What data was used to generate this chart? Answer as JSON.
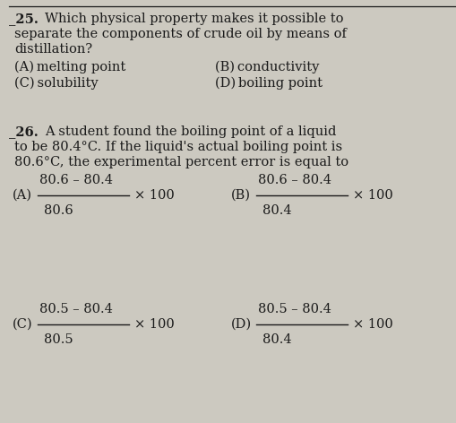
{
  "bg_color": "#ccc9c0",
  "text_color": "#1a1a1a",
  "fig_width": 5.09,
  "fig_height": 4.72,
  "dpi": 100,
  "q25_number": "_25.",
  "q25_line1": "Which physical property makes it possible to",
  "q25_line2": "separate the components of crude oil by means of",
  "q25_line3": "distillation?",
  "q25_A": "(A) melting point",
  "q25_B": "(B) conductivity",
  "q25_C": "(C) solubility",
  "q25_D": "(D) boiling point",
  "q26_number": "_26.",
  "q26_line1": "A student found the boiling point of a liquid",
  "q26_line2": "to be 80.4°C. If the liquid's actual boiling point is",
  "q26_line3": "80.6°C, the experimental percent error is equal to",
  "q26_A_label": "(A)",
  "q26_A_num": "80.6 – 80.4",
  "q26_A_den": "80.6",
  "q26_A_mult": "× 100",
  "q26_B_label": "(B)",
  "q26_B_num": "80.6 – 80.4",
  "q26_B_den": "80.4",
  "q26_B_mult": "× 100",
  "q26_C_label": "(C)",
  "q26_C_num": "80.5 – 80.4",
  "q26_C_den": "80.5",
  "q26_C_mult": "× 100",
  "q26_D_label": "(D)",
  "q26_D_num": "80.5 – 80.4",
  "q26_D_den": "80.4",
  "q26_D_mult": "× 100",
  "font_size_main": 10.5,
  "font_size_num": 10.5
}
